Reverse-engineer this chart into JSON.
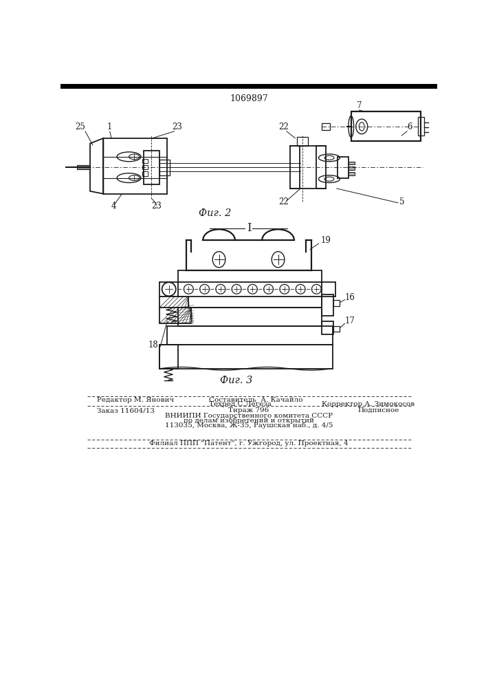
{
  "patent_number": "1069897",
  "fig2_label": "Фиг. 2",
  "fig3_label": "Фиг. 3",
  "separator_label": "I",
  "editor_line": "Редактор М. Янович",
  "composer_line": "Составитель  А. Качайло",
  "techred_line": "Техред С.Легеза",
  "corrector_line": "Корректор А. Зимокосов",
  "order_line": "Заказ 11604/13",
  "tirazh_line": "Тираж 796",
  "podpisnoe_line": "Подписное",
  "vnipi_line1": "ВНИИПИ Государственного комитета СССР",
  "vnipi_line2": "по делам изобретений и открытий",
  "vnipi_line3": "113035, Москва, Ж-35, Раушская наб., д. 4/5",
  "filial_line": "Филиал ППП \"Патент\", г. Ужгород, ул. Проектная, 4",
  "bg_color": "#ffffff",
  "line_color": "#1a1a1a"
}
